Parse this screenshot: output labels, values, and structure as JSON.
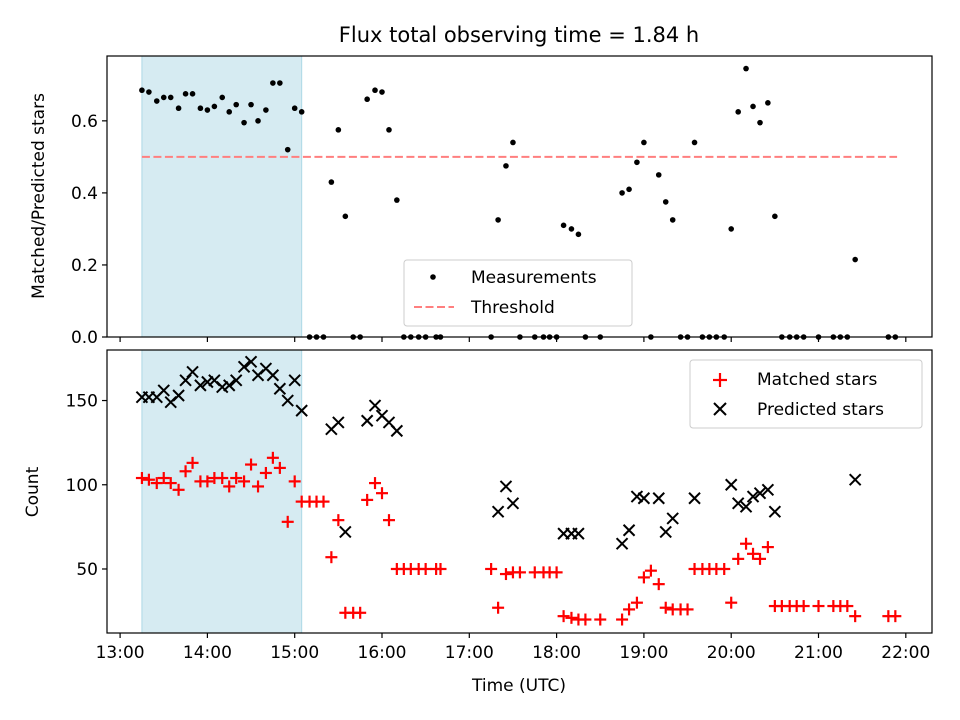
{
  "figure": {
    "title": "Flux total observing time = 1.84 h",
    "xlabel": "Time (UTC)"
  },
  "colors": {
    "shade": "#add8e6",
    "threshold": "#ff7f7f",
    "matched": "#ff0000",
    "predicted": "#000000",
    "measurement": "#000000"
  },
  "chart_data": [
    {
      "type": "scatter",
      "title": "Flux total observing time = 1.84 h",
      "xlabel": "",
      "ylabel": "Matched/Predicted stars",
      "x_unit": "hours UTC",
      "xlim": [
        12.85,
        22.3
      ],
      "ylim": [
        0,
        0.78
      ],
      "yticks": [
        0.0,
        0.2,
        0.4,
        0.6
      ],
      "ytick_labels": [
        "0.0",
        "0.2",
        "0.4",
        "0.6"
      ],
      "xticks": [
        13,
        14,
        15,
        16,
        17,
        18,
        19,
        20,
        21,
        22
      ],
      "legend": {
        "position": "lower center",
        "entries": [
          "Measurements",
          "Threshold"
        ]
      },
      "shaded_interval": [
        13.25,
        15.08
      ],
      "threshold": {
        "name": "Threshold",
        "y": 0.5,
        "x_start": 13.25,
        "x_end": 21.9
      },
      "series": [
        {
          "name": "Measurements",
          "x": [
            13.25,
            13.33,
            13.42,
            13.5,
            13.58,
            13.67,
            13.75,
            13.83,
            13.92,
            14.0,
            14.08,
            14.17,
            14.25,
            14.33,
            14.42,
            14.5,
            14.58,
            14.67,
            14.75,
            14.83,
            14.92,
            15.0,
            15.08,
            15.17,
            15.25,
            15.33,
            15.42,
            15.5,
            15.58,
            15.67,
            15.75,
            15.83,
            15.92,
            16.0,
            16.08,
            16.17,
            16.25,
            16.33,
            16.42,
            16.5,
            16.62,
            16.67,
            17.25,
            17.33,
            17.42,
            17.5,
            17.58,
            17.75,
            17.85,
            17.92,
            18.0,
            18.08,
            18.17,
            18.25,
            18.33,
            18.5,
            18.75,
            18.83,
            18.92,
            19.0,
            19.08,
            19.17,
            19.25,
            19.33,
            19.42,
            19.5,
            19.58,
            19.67,
            19.75,
            19.83,
            19.92,
            20.0,
            20.08,
            20.17,
            20.25,
            20.33,
            20.42,
            20.5,
            20.58,
            20.67,
            20.75,
            20.83,
            21.0,
            21.17,
            21.25,
            21.33,
            21.42,
            21.8,
            21.88
          ],
          "y": [
            0.685,
            0.68,
            0.655,
            0.665,
            0.665,
            0.635,
            0.675,
            0.675,
            0.635,
            0.63,
            0.64,
            0.665,
            0.625,
            0.645,
            0.595,
            0.645,
            0.6,
            0.63,
            0.705,
            0.705,
            0.52,
            0.635,
            0.625,
            0.0,
            0.0,
            0.0,
            0.43,
            0.575,
            0.335,
            0.0,
            0.0,
            0.66,
            0.685,
            0.68,
            0.575,
            0.38,
            0.0,
            0.0,
            0.0,
            0.0,
            0.0,
            0.0,
            0.0,
            0.325,
            0.475,
            0.54,
            0.0,
            0.0,
            0.0,
            0.0,
            0.0,
            0.31,
            0.3,
            0.285,
            0.0,
            0.0,
            0.4,
            0.41,
            0.485,
            0.54,
            0.0,
            0.45,
            0.375,
            0.325,
            0.0,
            0.0,
            0.54,
            0.0,
            0.0,
            0.0,
            0.0,
            0.3,
            0.625,
            0.745,
            0.64,
            0.595,
            0.65,
            0.335,
            0.0,
            0.0,
            0.0,
            0.0,
            0.0,
            0.0,
            0.0,
            0.0,
            0.215,
            0.0,
            0.0
          ]
        }
      ]
    },
    {
      "type": "scatter",
      "title": "",
      "xlabel": "Time (UTC)",
      "ylabel": "Count",
      "x_unit": "hours UTC",
      "xlim": [
        12.85,
        22.3
      ],
      "ylim": [
        12,
        180
      ],
      "yticks": [
        50,
        100,
        150
      ],
      "ytick_labels": [
        "50",
        "100",
        "150"
      ],
      "xticks": [
        13,
        14,
        15,
        16,
        17,
        18,
        19,
        20,
        21,
        22
      ],
      "xtick_labels": [
        "13:00",
        "14:00",
        "15:00",
        "16:00",
        "17:00",
        "18:00",
        "19:00",
        "20:00",
        "21:00",
        "22:00"
      ],
      "legend": {
        "position": "upper right",
        "entries": [
          "Matched stars",
          "Predicted stars"
        ]
      },
      "shaded_interval": [
        13.25,
        15.08
      ],
      "series": [
        {
          "name": "Matched stars",
          "x": [
            13.25,
            13.33,
            13.42,
            13.5,
            13.58,
            13.67,
            13.75,
            13.83,
            13.92,
            14.0,
            14.08,
            14.17,
            14.25,
            14.33,
            14.42,
            14.5,
            14.58,
            14.67,
            14.75,
            14.83,
            14.92,
            15.0,
            15.08,
            15.17,
            15.25,
            15.33,
            15.42,
            15.5,
            15.58,
            15.67,
            15.75,
            15.83,
            15.92,
            16.0,
            16.08,
            16.17,
            16.25,
            16.33,
            16.42,
            16.5,
            16.62,
            16.67,
            17.25,
            17.33,
            17.42,
            17.5,
            17.58,
            17.75,
            17.85,
            17.92,
            18.0,
            18.08,
            18.17,
            18.25,
            18.33,
            18.5,
            18.75,
            18.83,
            18.92,
            19.0,
            19.08,
            19.17,
            19.25,
            19.33,
            19.42,
            19.5,
            19.58,
            19.67,
            19.75,
            19.83,
            19.92,
            20.0,
            20.08,
            20.17,
            20.25,
            20.33,
            20.42,
            20.5,
            20.58,
            20.67,
            20.75,
            20.83,
            21.0,
            21.17,
            21.25,
            21.33,
            21.42,
            21.8,
            21.88
          ],
          "y": [
            104,
            103,
            101,
            104,
            101,
            97,
            108,
            113,
            102,
            102,
            104,
            104,
            99,
            104,
            102,
            112,
            99,
            107,
            116,
            110,
            78,
            102,
            90,
            90,
            90,
            90,
            57,
            79,
            24,
            24,
            24,
            91,
            101,
            95,
            79,
            50,
            50,
            50,
            50,
            50,
            50,
            50,
            50,
            27,
            47,
            48,
            48,
            48,
            48,
            48,
            48,
            22,
            21,
            20,
            20,
            20,
            20,
            26,
            30,
            45,
            49,
            41,
            27,
            26,
            26,
            26,
            50,
            50,
            50,
            50,
            50,
            30,
            56,
            65,
            59,
            56,
            63,
            28,
            28,
            28,
            28,
            28,
            28,
            28,
            28,
            28,
            22,
            22,
            22
          ],
          "marker": "plus",
          "color": "#ff0000"
        },
        {
          "name": "Predicted stars",
          "x": [
            13.25,
            13.33,
            13.42,
            13.5,
            13.58,
            13.67,
            13.75,
            13.83,
            13.92,
            14.0,
            14.08,
            14.17,
            14.25,
            14.33,
            14.42,
            14.5,
            14.58,
            14.67,
            14.75,
            14.83,
            14.92,
            15.0,
            15.08,
            15.42,
            15.5,
            15.58,
            15.83,
            15.92,
            16.0,
            16.08,
            16.17,
            17.33,
            17.42,
            17.5,
            18.08,
            18.17,
            18.25,
            18.75,
            18.83,
            18.92,
            19.0,
            19.17,
            19.25,
            19.33,
            19.58,
            20.0,
            20.08,
            20.17,
            20.25,
            20.33,
            20.42,
            20.5,
            21.42
          ],
          "y": [
            152,
            152,
            152,
            156,
            149,
            153,
            162,
            167,
            159,
            161,
            162,
            158,
            159,
            162,
            170,
            173,
            165,
            169,
            165,
            157,
            150,
            162,
            144,
            133,
            137,
            72,
            138,
            147,
            141,
            137,
            132,
            84,
            99,
            89,
            71,
            71,
            71,
            65,
            73,
            93,
            92,
            92,
            72,
            80,
            92,
            100,
            89,
            87,
            93,
            95,
            97,
            84,
            103
          ],
          "marker": "x",
          "color": "#000000"
        }
      ]
    }
  ]
}
